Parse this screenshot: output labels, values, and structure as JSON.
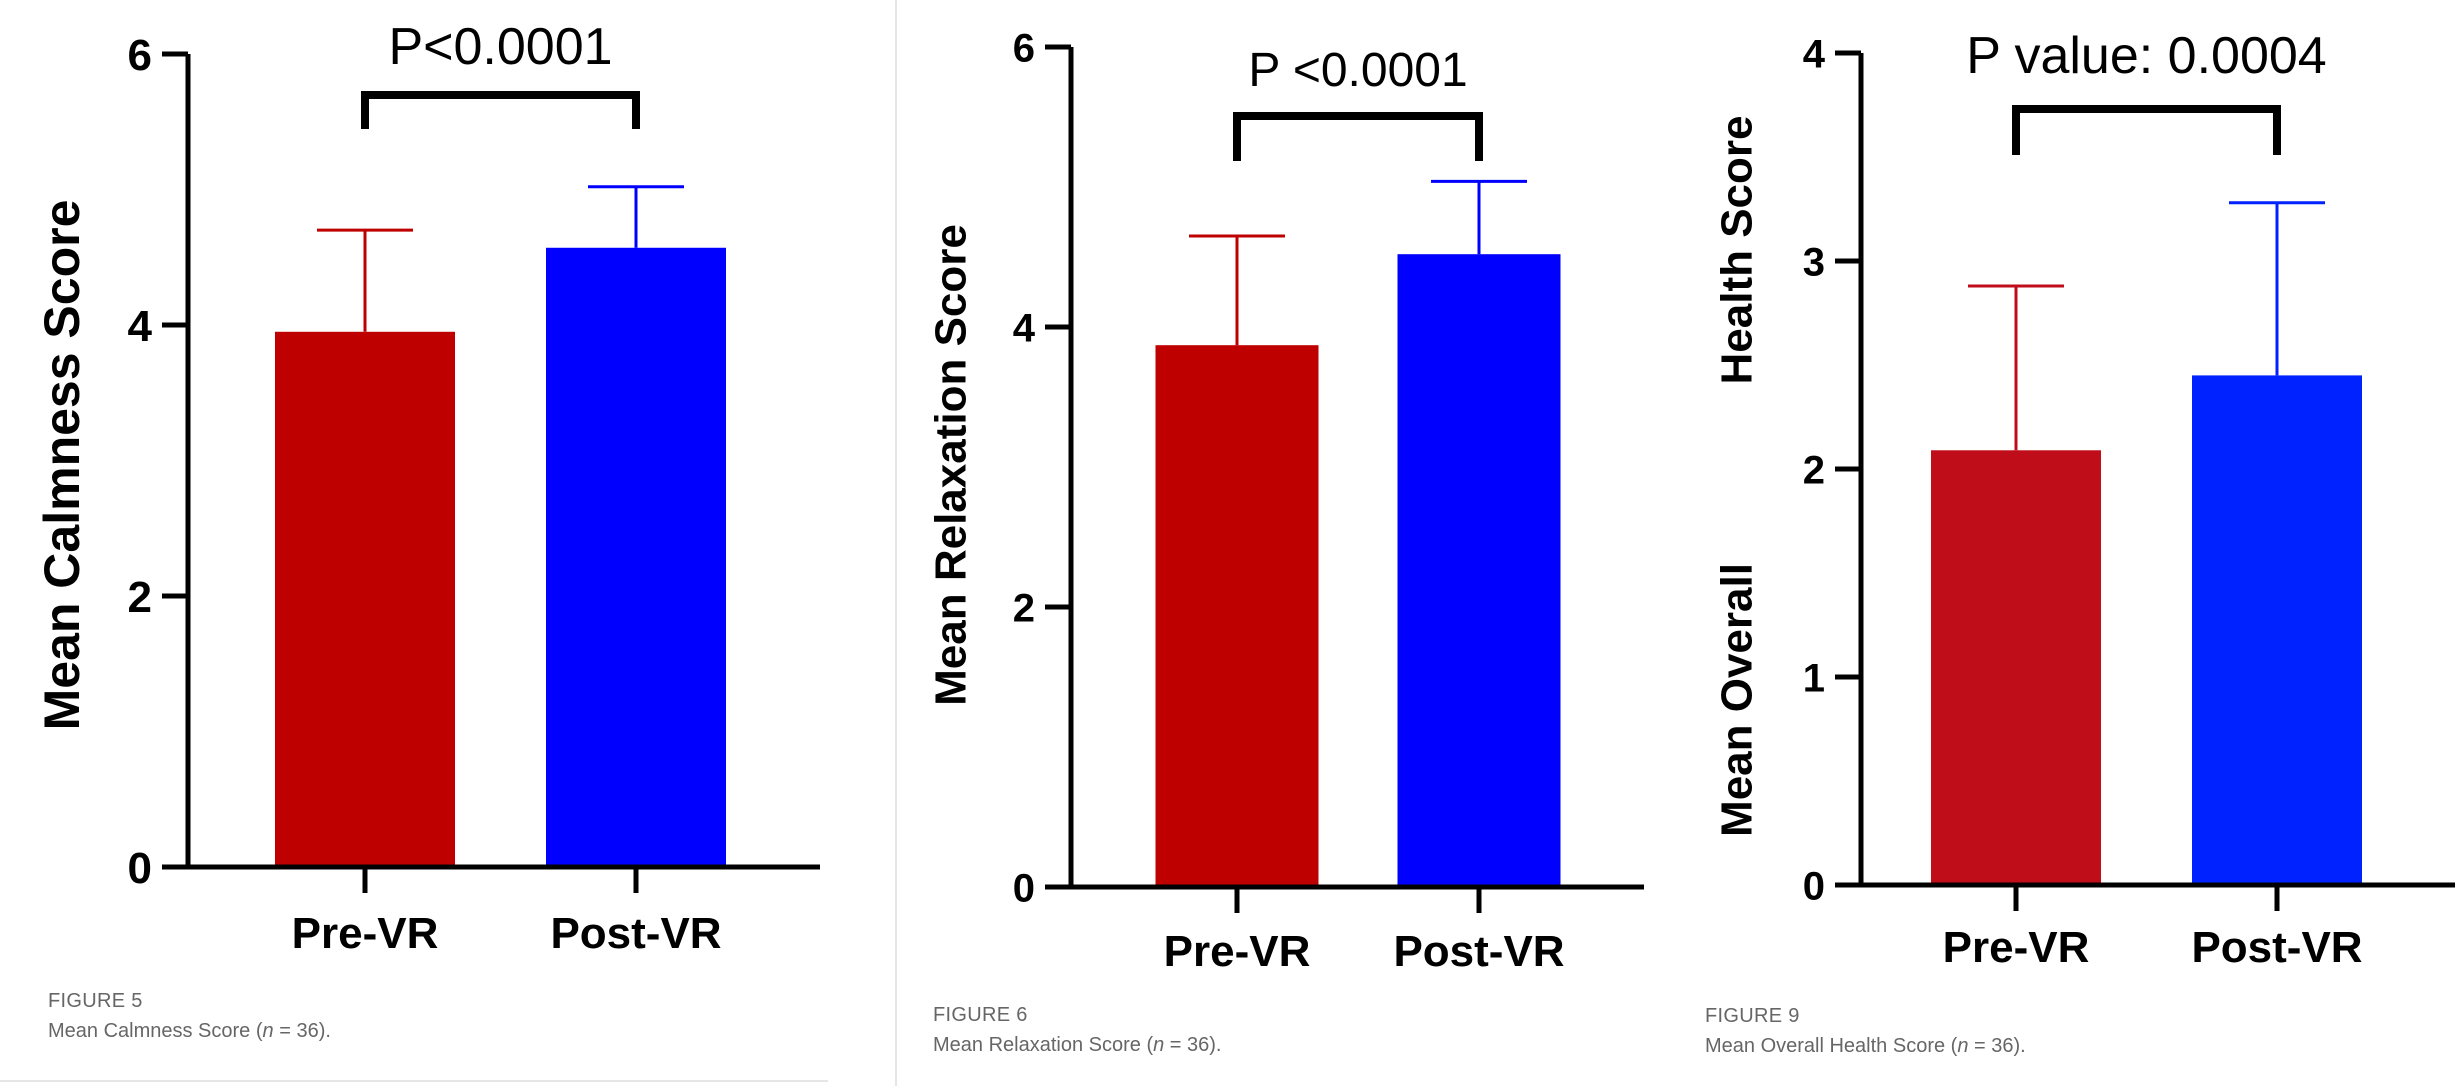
{
  "chart_data": [
    {
      "type": "bar",
      "title": "",
      "categories": [
        "Pre-VR",
        "Post-VR"
      ],
      "series": [
        {
          "name": "Mean",
          "values": [
            3.95,
            4.57
          ],
          "errors": [
            0.75,
            0.45
          ]
        }
      ],
      "colors": [
        "#bf0000",
        "#0000ff"
      ],
      "ylabel": "Mean Calmness Score",
      "xlabel": "",
      "ylim": [
        0,
        6
      ],
      "yticks": [
        0,
        2,
        4,
        6
      ],
      "grid": false,
      "annotation": "P<0.0001",
      "caption_label": "FIGURE 5",
      "caption_text_before": "Mean Calmness Score (",
      "caption_n": "n",
      "caption_text_after": " = 36)."
    },
    {
      "type": "bar",
      "title": "",
      "categories": [
        "Pre-VR",
        "Post-VR"
      ],
      "series": [
        {
          "name": "Mean",
          "values": [
            3.87,
            4.52
          ],
          "errors": [
            0.78,
            0.52
          ]
        }
      ],
      "colors": [
        "#bf0000",
        "#0000ff"
      ],
      "ylabel": "Mean Relaxation Score",
      "xlabel": "",
      "ylim": [
        0,
        6
      ],
      "yticks": [
        0,
        2,
        4,
        6
      ],
      "grid": false,
      "annotation": "P <0.0001",
      "caption_label": "FIGURE 6",
      "caption_text_before": "Mean Relaxation Score (",
      "caption_n": "n",
      "caption_text_after": " = 36)."
    },
    {
      "type": "bar",
      "title": "",
      "categories": [
        "Pre-VR",
        "Post-VR"
      ],
      "series": [
        {
          "name": "Mean",
          "values": [
            2.09,
            2.45
          ],
          "errors": [
            0.79,
            0.83
          ]
        }
      ],
      "colors": [
        "#bf0d19",
        "#0022ff"
      ],
      "ylabel_parts": [
        "Mean Overall",
        "Health Score"
      ],
      "xlabel": "",
      "ylim": [
        0,
        4
      ],
      "yticks": [
        0,
        1,
        2,
        3,
        4
      ],
      "grid": false,
      "annotation": "P value: 0.0004",
      "caption_label": "FIGURE 9",
      "caption_text_before": "Mean Overall Health Score (",
      "caption_n": "n",
      "caption_text_after": " = 36)."
    }
  ]
}
